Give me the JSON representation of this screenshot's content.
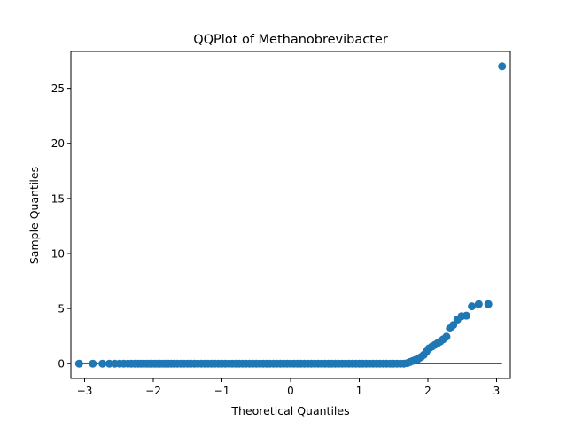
{
  "chart_data": {
    "type": "scatter",
    "title": "QQPlot of Methanobrevibacter",
    "xlabel": "Theoretical Quantiles",
    "ylabel": "Sample Quantiles",
    "xlim": [
      -3.2,
      3.2
    ],
    "ylim": [
      -1.35,
      28.35
    ],
    "xticks": [
      -3,
      -2,
      -1,
      0,
      1,
      2,
      3
    ],
    "yticks": [
      0,
      5,
      10,
      15,
      20,
      25
    ],
    "grid": false,
    "colors": {
      "points": "#1f77b4",
      "reference_line": "#e41a1c"
    },
    "reference_line": {
      "x": [
        -3.08,
        3.08
      ],
      "y": [
        0,
        0
      ]
    },
    "points": [
      [
        -3.08,
        0
      ],
      [
        -2.88,
        0
      ],
      [
        -2.74,
        0
      ],
      [
        -2.64,
        0
      ],
      [
        -2.56,
        0
      ],
      [
        -2.49,
        0
      ],
      [
        -2.43,
        0
      ],
      [
        -2.37,
        0
      ],
      [
        -2.32,
        0
      ],
      [
        -2.27,
        0
      ],
      [
        -2.22,
        0
      ],
      [
        -2.18,
        0
      ],
      [
        -2.14,
        0
      ],
      [
        -2.1,
        0
      ],
      [
        -2.06,
        0
      ],
      [
        -2.02,
        0
      ],
      [
        -1.98,
        0
      ],
      [
        -1.94,
        0
      ],
      [
        -1.9,
        0
      ],
      [
        -1.86,
        0
      ],
      [
        -1.82,
        0
      ],
      [
        -1.78,
        0
      ],
      [
        -1.74,
        0
      ],
      [
        -1.7,
        0
      ],
      [
        -1.65,
        0
      ],
      [
        -1.6,
        0
      ],
      [
        -1.55,
        0
      ],
      [
        -1.5,
        0
      ],
      [
        -1.45,
        0
      ],
      [
        -1.4,
        0
      ],
      [
        -1.35,
        0
      ],
      [
        -1.3,
        0
      ],
      [
        -1.25,
        0
      ],
      [
        -1.2,
        0
      ],
      [
        -1.15,
        0
      ],
      [
        -1.1,
        0
      ],
      [
        -1.05,
        0
      ],
      [
        -1.0,
        0
      ],
      [
        -0.95,
        0
      ],
      [
        -0.9,
        0
      ],
      [
        -0.85,
        0
      ],
      [
        -0.8,
        0
      ],
      [
        -0.75,
        0
      ],
      [
        -0.7,
        0
      ],
      [
        -0.65,
        0
      ],
      [
        -0.6,
        0
      ],
      [
        -0.55,
        0
      ],
      [
        -0.5,
        0
      ],
      [
        -0.45,
        0
      ],
      [
        -0.4,
        0
      ],
      [
        -0.35,
        0
      ],
      [
        -0.3,
        0
      ],
      [
        -0.25,
        0
      ],
      [
        -0.2,
        0
      ],
      [
        -0.15,
        0
      ],
      [
        -0.1,
        0
      ],
      [
        -0.05,
        0
      ],
      [
        0.0,
        0
      ],
      [
        0.05,
        0
      ],
      [
        0.1,
        0
      ],
      [
        0.15,
        0
      ],
      [
        0.2,
        0
      ],
      [
        0.25,
        0
      ],
      [
        0.3,
        0
      ],
      [
        0.35,
        0
      ],
      [
        0.4,
        0
      ],
      [
        0.45,
        0
      ],
      [
        0.5,
        0
      ],
      [
        0.55,
        0
      ],
      [
        0.6,
        0
      ],
      [
        0.65,
        0
      ],
      [
        0.7,
        0
      ],
      [
        0.75,
        0
      ],
      [
        0.8,
        0
      ],
      [
        0.85,
        0
      ],
      [
        0.9,
        0
      ],
      [
        0.95,
        0
      ],
      [
        1.0,
        0
      ],
      [
        1.05,
        0
      ],
      [
        1.1,
        0
      ],
      [
        1.15,
        0
      ],
      [
        1.2,
        0
      ],
      [
        1.25,
        0
      ],
      [
        1.3,
        0
      ],
      [
        1.35,
        0
      ],
      [
        1.4,
        0
      ],
      [
        1.45,
        0
      ],
      [
        1.5,
        0
      ],
      [
        1.55,
        0
      ],
      [
        1.6,
        0
      ],
      [
        1.65,
        0
      ],
      [
        1.7,
        0.05
      ],
      [
        1.74,
        0.15
      ],
      [
        1.78,
        0.25
      ],
      [
        1.82,
        0.35
      ],
      [
        1.86,
        0.45
      ],
      [
        1.9,
        0.6
      ],
      [
        1.94,
        0.8
      ],
      [
        1.98,
        1.1
      ],
      [
        2.02,
        1.4
      ],
      [
        2.06,
        1.55
      ],
      [
        2.1,
        1.7
      ],
      [
        2.14,
        1.85
      ],
      [
        2.18,
        2.0
      ],
      [
        2.22,
        2.2
      ],
      [
        2.27,
        2.45
      ],
      [
        2.32,
        3.2
      ],
      [
        2.37,
        3.5
      ],
      [
        2.43,
        4.0
      ],
      [
        2.49,
        4.3
      ],
      [
        2.56,
        4.35
      ],
      [
        2.64,
        5.2
      ],
      [
        2.74,
        5.4
      ],
      [
        2.88,
        5.4
      ],
      [
        3.08,
        27.0
      ]
    ]
  }
}
